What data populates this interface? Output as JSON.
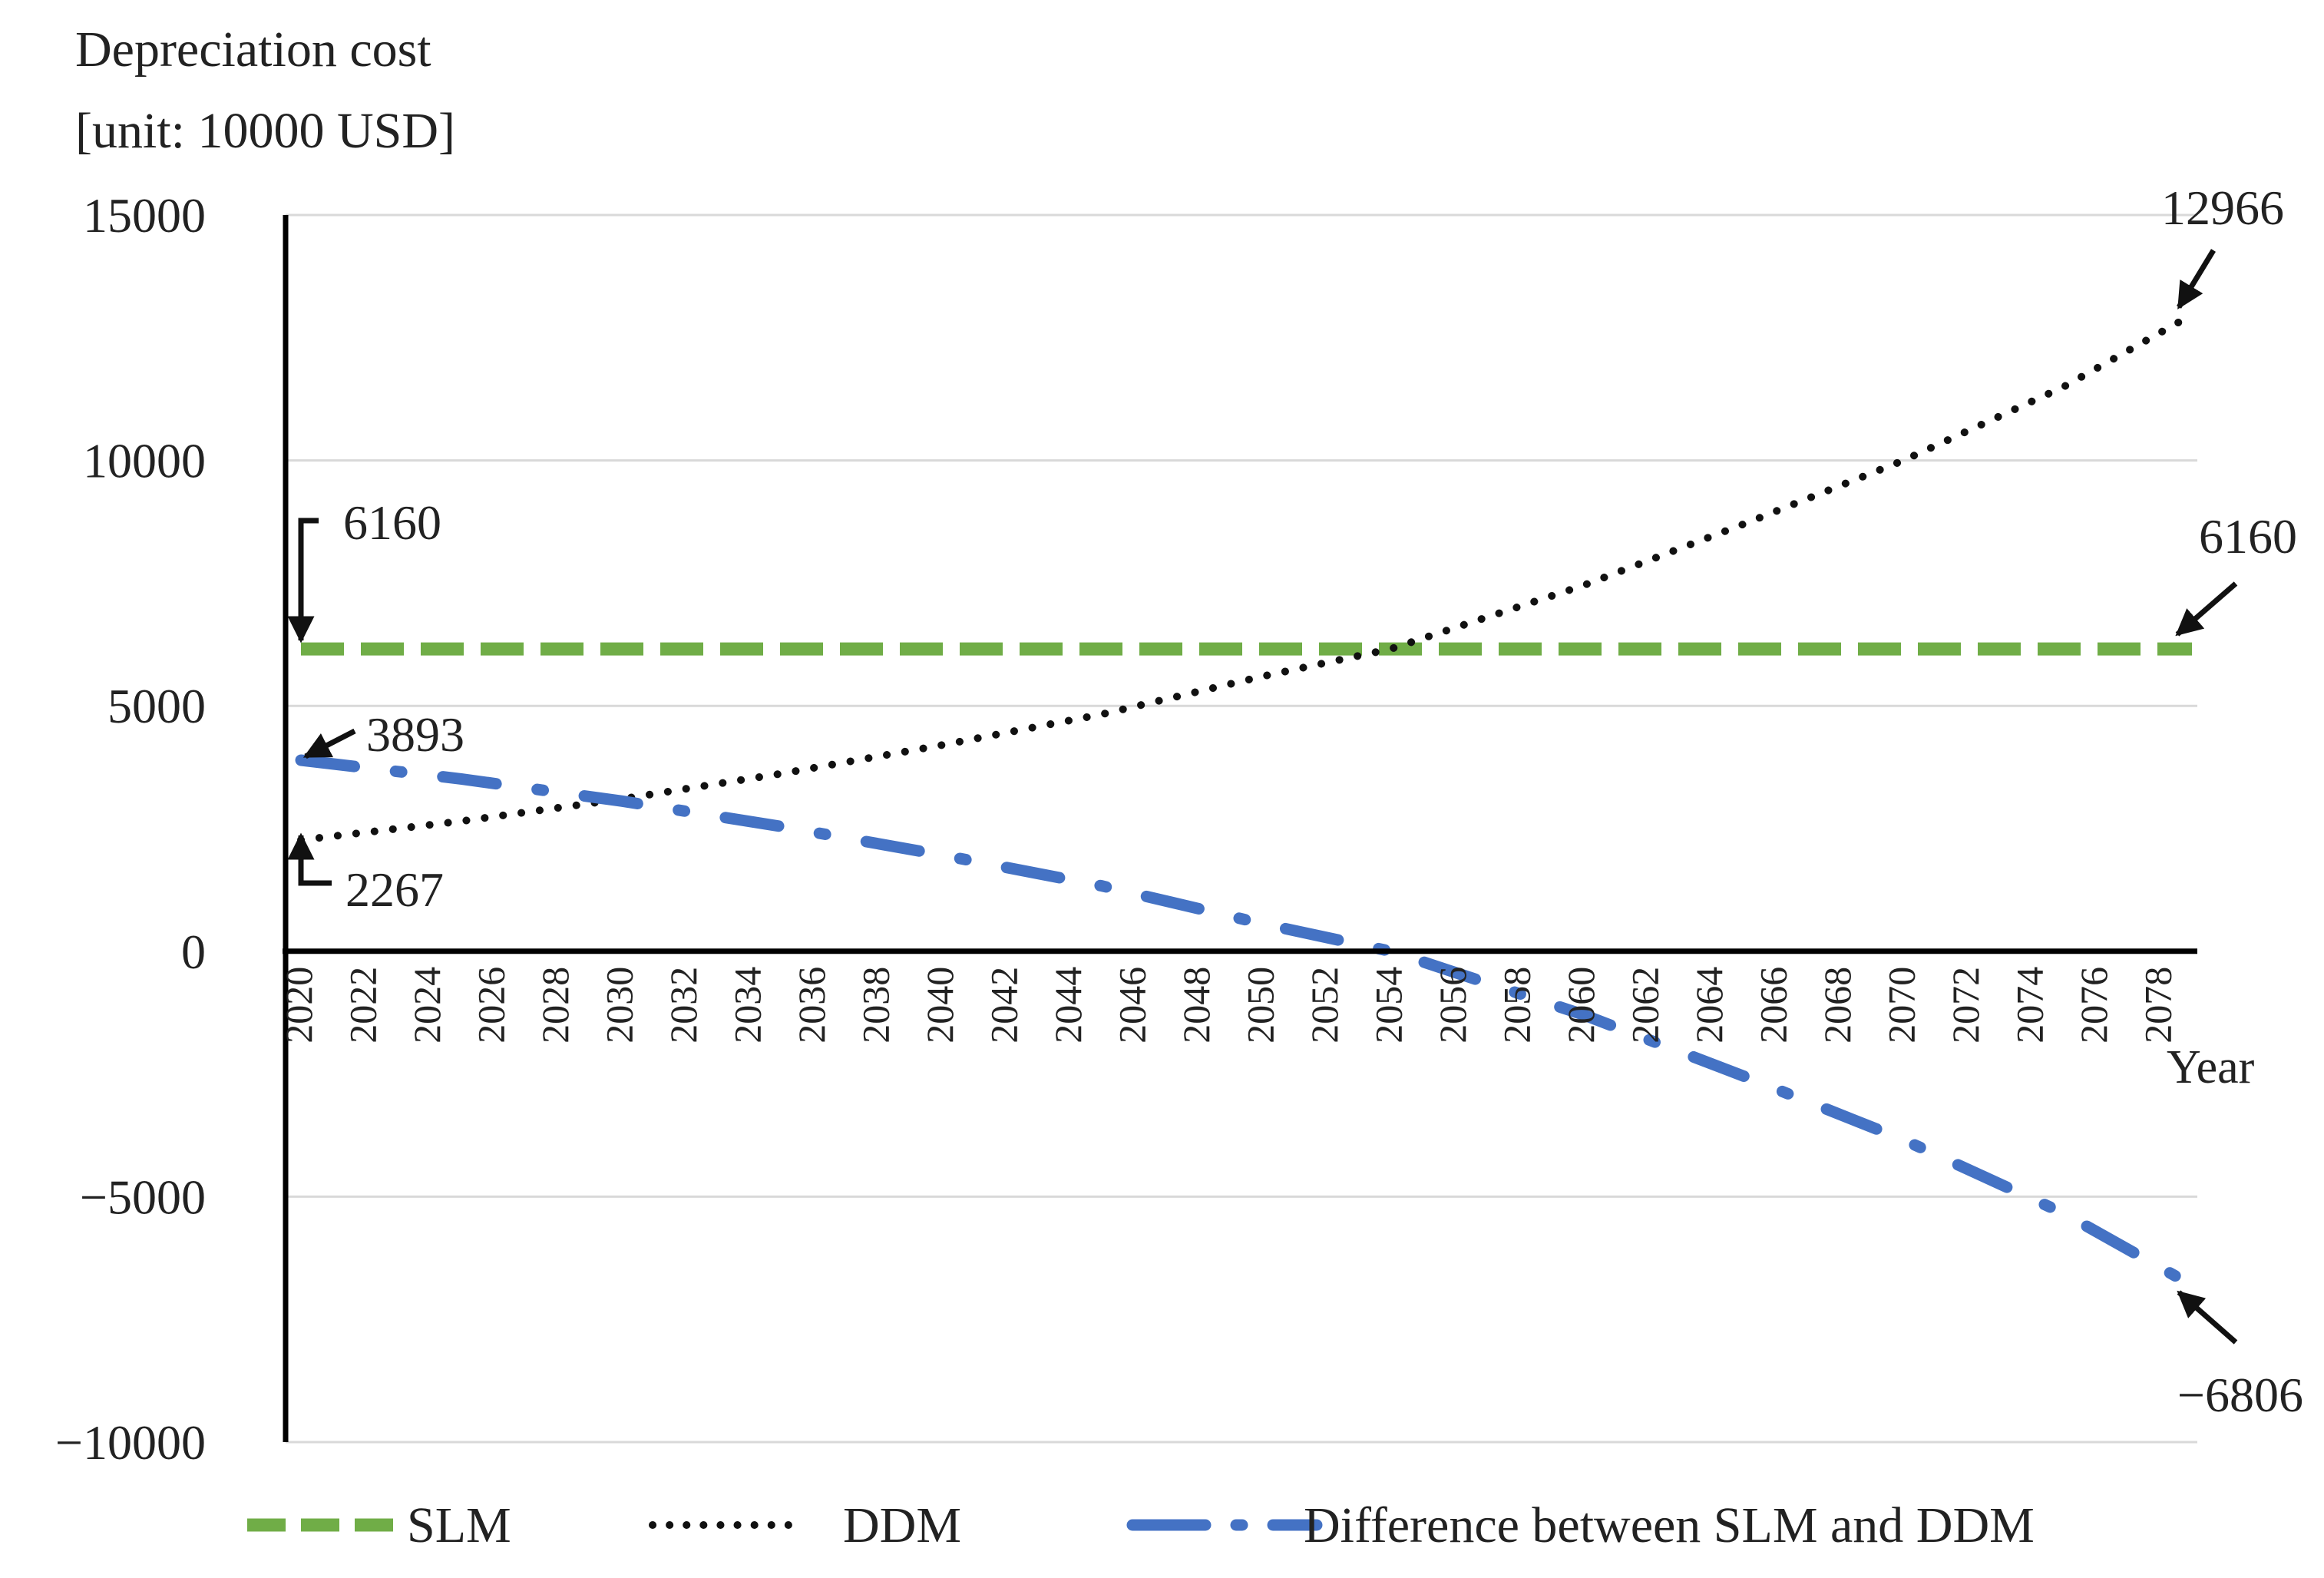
{
  "chart_data": {
    "type": "line",
    "ylabel_line1": "Depreciation cost",
    "ylabel_line2": "[unit: 10000 USD]",
    "xlabel": "Year",
    "ylim": [
      -10000,
      15000
    ],
    "xlim": [
      2020,
      2079
    ],
    "grid": true,
    "y_ticks": [
      15000,
      10000,
      5000,
      0,
      -5000,
      -10000
    ],
    "y_tick_labels": [
      "15000",
      "10000",
      "5000",
      "0",
      "−5000",
      "−10000"
    ],
    "x_ticks": [
      2020,
      2022,
      2024,
      2026,
      2028,
      2030,
      2032,
      2034,
      2036,
      2038,
      2040,
      2042,
      2044,
      2046,
      2048,
      2050,
      2052,
      2054,
      2056,
      2058,
      2060,
      2062,
      2064,
      2066,
      2068,
      2070,
      2072,
      2074,
      2076,
      2078
    ],
    "x_tick_labels": [
      "2020",
      "2022",
      "2024",
      "2026",
      "2028",
      "2030",
      "2032",
      "2034",
      "2036",
      "2038",
      "2040",
      "2042",
      "2044",
      "2046",
      "2048",
      "2050",
      "2052",
      "2054",
      "2056",
      "2058",
      "2060",
      "2062",
      "2064",
      "2066",
      "2068",
      "2070",
      "2072",
      "2074",
      "2076",
      "2078"
    ],
    "series": [
      {
        "name": "SLM",
        "color": "#70ad47",
        "style": "dashed",
        "x": [
          2020,
          2079
        ],
        "values": [
          6160,
          6160
        ]
      },
      {
        "name": "DDM",
        "color": "#111111",
        "style": "dotted",
        "x": [
          2020,
          2025,
          2030,
          2035,
          2040,
          2045,
          2050,
          2054,
          2060,
          2065,
          2070,
          2075,
          2079
        ],
        "values": [
          2267,
          2650,
          3100,
          3620,
          4200,
          4830,
          5600,
          6160,
          7450,
          8700,
          10000,
          11500,
          12966
        ]
      },
      {
        "name": "Difference between SLM and DDM",
        "color": "#4472c4",
        "style": "dashdot",
        "x": [
          2020,
          2025,
          2030,
          2035,
          2040,
          2045,
          2050,
          2054,
          2060,
          2065,
          2070,
          2075,
          2079
        ],
        "values": [
          3893,
          3510,
          3060,
          2540,
          1960,
          1330,
          560,
          0,
          -1290,
          -2540,
          -3840,
          -5340,
          -6806
        ]
      }
    ],
    "annotations": [
      {
        "text": "6160",
        "series": "SLM",
        "x": 2020,
        "y": 6160
      },
      {
        "text": "3893",
        "series": "Difference between SLM and DDM",
        "x": 2020,
        "y": 3893
      },
      {
        "text": "2267",
        "series": "DDM",
        "x": 2020,
        "y": 2267
      },
      {
        "text": "12966",
        "series": "DDM",
        "x": 2079,
        "y": 12966
      },
      {
        "text": "6160",
        "series": "SLM",
        "x": 2079,
        "y": 6160
      },
      {
        "text": "−6806",
        "series": "Difference between SLM and DDM",
        "x": 2079,
        "y": -6806
      }
    ],
    "legend": {
      "position": "bottom",
      "entries": [
        "SLM",
        "DDM",
        "Difference between SLM and DDM"
      ]
    }
  }
}
